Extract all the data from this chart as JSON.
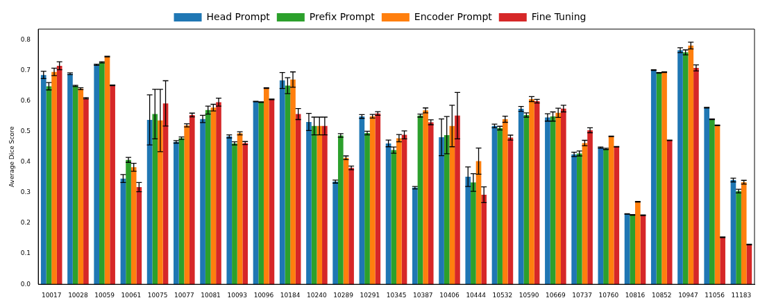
{
  "chart_data": {
    "type": "bar",
    "ylabel": "Average Dice Score",
    "categories": [
      "10017",
      "10028",
      "10059",
      "10061",
      "10075",
      "10077",
      "10081",
      "10093",
      "10096",
      "10184",
      "10240",
      "10289",
      "10291",
      "10345",
      "10387",
      "10406",
      "10444",
      "10532",
      "10590",
      "10669",
      "10737",
      "10760",
      "10816",
      "10852",
      "10947",
      "11056",
      "11183"
    ],
    "series": [
      {
        "name": "Head Prompt",
        "color": "#1f77b4",
        "values": [
          0.685,
          0.689,
          0.718,
          0.346,
          0.538,
          0.466,
          0.541,
          0.484,
          0.598,
          0.667,
          0.531,
          0.336,
          0.549,
          0.461,
          0.316,
          0.481,
          0.352,
          0.518,
          0.574,
          0.546,
          0.425,
          0.447,
          0.23,
          0.701,
          0.766,
          0.578,
          0.341
        ],
        "errors": [
          0.012,
          0.003,
          0.002,
          0.013,
          0.082,
          0.004,
          0.012,
          0.005,
          0.001,
          0.026,
          0.028,
          0.005,
          0.006,
          0.011,
          0.004,
          0.06,
          0.032,
          0.006,
          0.008,
          0.012,
          0.007,
          0.002,
          0.001,
          0.001,
          0.008,
          0.001,
          0.006
        ]
      },
      {
        "name": "Prefix Prompt",
        "color": "#2ca02c",
        "values": [
          0.648,
          0.649,
          0.726,
          0.407,
          0.557,
          0.478,
          0.57,
          0.461,
          0.596,
          0.65,
          0.518,
          0.487,
          0.495,
          0.439,
          0.552,
          0.488,
          0.333,
          0.511,
          0.554,
          0.549,
          0.428,
          0.443,
          0.227,
          0.692,
          0.759,
          0.54,
          0.305
        ],
        "errors": [
          0.012,
          0.002,
          0.002,
          0.008,
          0.081,
          0.004,
          0.013,
          0.005,
          0.001,
          0.026,
          0.029,
          0.006,
          0.006,
          0.01,
          0.005,
          0.061,
          0.029,
          0.006,
          0.007,
          0.015,
          0.008,
          0.002,
          0.001,
          0.001,
          0.008,
          0.001,
          0.006
        ]
      },
      {
        "name": "Encoder Prompt",
        "color": "#ff7f0e",
        "values": [
          0.695,
          0.64,
          0.745,
          0.383,
          0.536,
          0.52,
          0.578,
          0.494,
          0.642,
          0.67,
          0.518,
          0.414,
          0.55,
          0.478,
          0.569,
          0.518,
          0.403,
          0.54,
          0.606,
          0.561,
          0.462,
          0.484,
          0.27,
          0.694,
          0.781,
          0.52,
          0.334
        ],
        "errors": [
          0.012,
          0.003,
          0.001,
          0.013,
          0.102,
          0.005,
          0.011,
          0.005,
          0.001,
          0.025,
          0.029,
          0.006,
          0.006,
          0.012,
          0.008,
          0.068,
          0.043,
          0.01,
          0.008,
          0.015,
          0.009,
          0.001,
          0.001,
          0.001,
          0.011,
          0.001,
          0.006
        ]
      },
      {
        "name": "Fine Tuning",
        "color": "#d62728",
        "values": [
          0.715,
          0.609,
          0.651,
          0.318,
          0.592,
          0.554,
          0.596,
          0.462,
          0.605,
          0.557,
          0.518,
          0.381,
          0.559,
          0.489,
          0.53,
          0.552,
          0.293,
          0.48,
          0.599,
          0.575,
          0.504,
          0.45,
          0.226,
          0.471,
          0.708,
          0.154,
          0.13
        ],
        "errors": [
          0.013,
          0.002,
          0.001,
          0.015,
          0.074,
          0.006,
          0.013,
          0.005,
          0.001,
          0.018,
          0.029,
          0.006,
          0.006,
          0.013,
          0.008,
          0.076,
          0.026,
          0.008,
          0.006,
          0.011,
          0.008,
          0.001,
          0.001,
          0.001,
          0.01,
          0.001,
          0.001
        ]
      }
    ],
    "ylim": [
      0,
      0.835
    ],
    "yticks": [
      {
        "value": 0,
        "label": "0.0"
      },
      0.1,
      0.2,
      0.3,
      0.4,
      0.5,
      0.6,
      0.7,
      0.8
    ],
    "grid": false,
    "legend": "top"
  }
}
